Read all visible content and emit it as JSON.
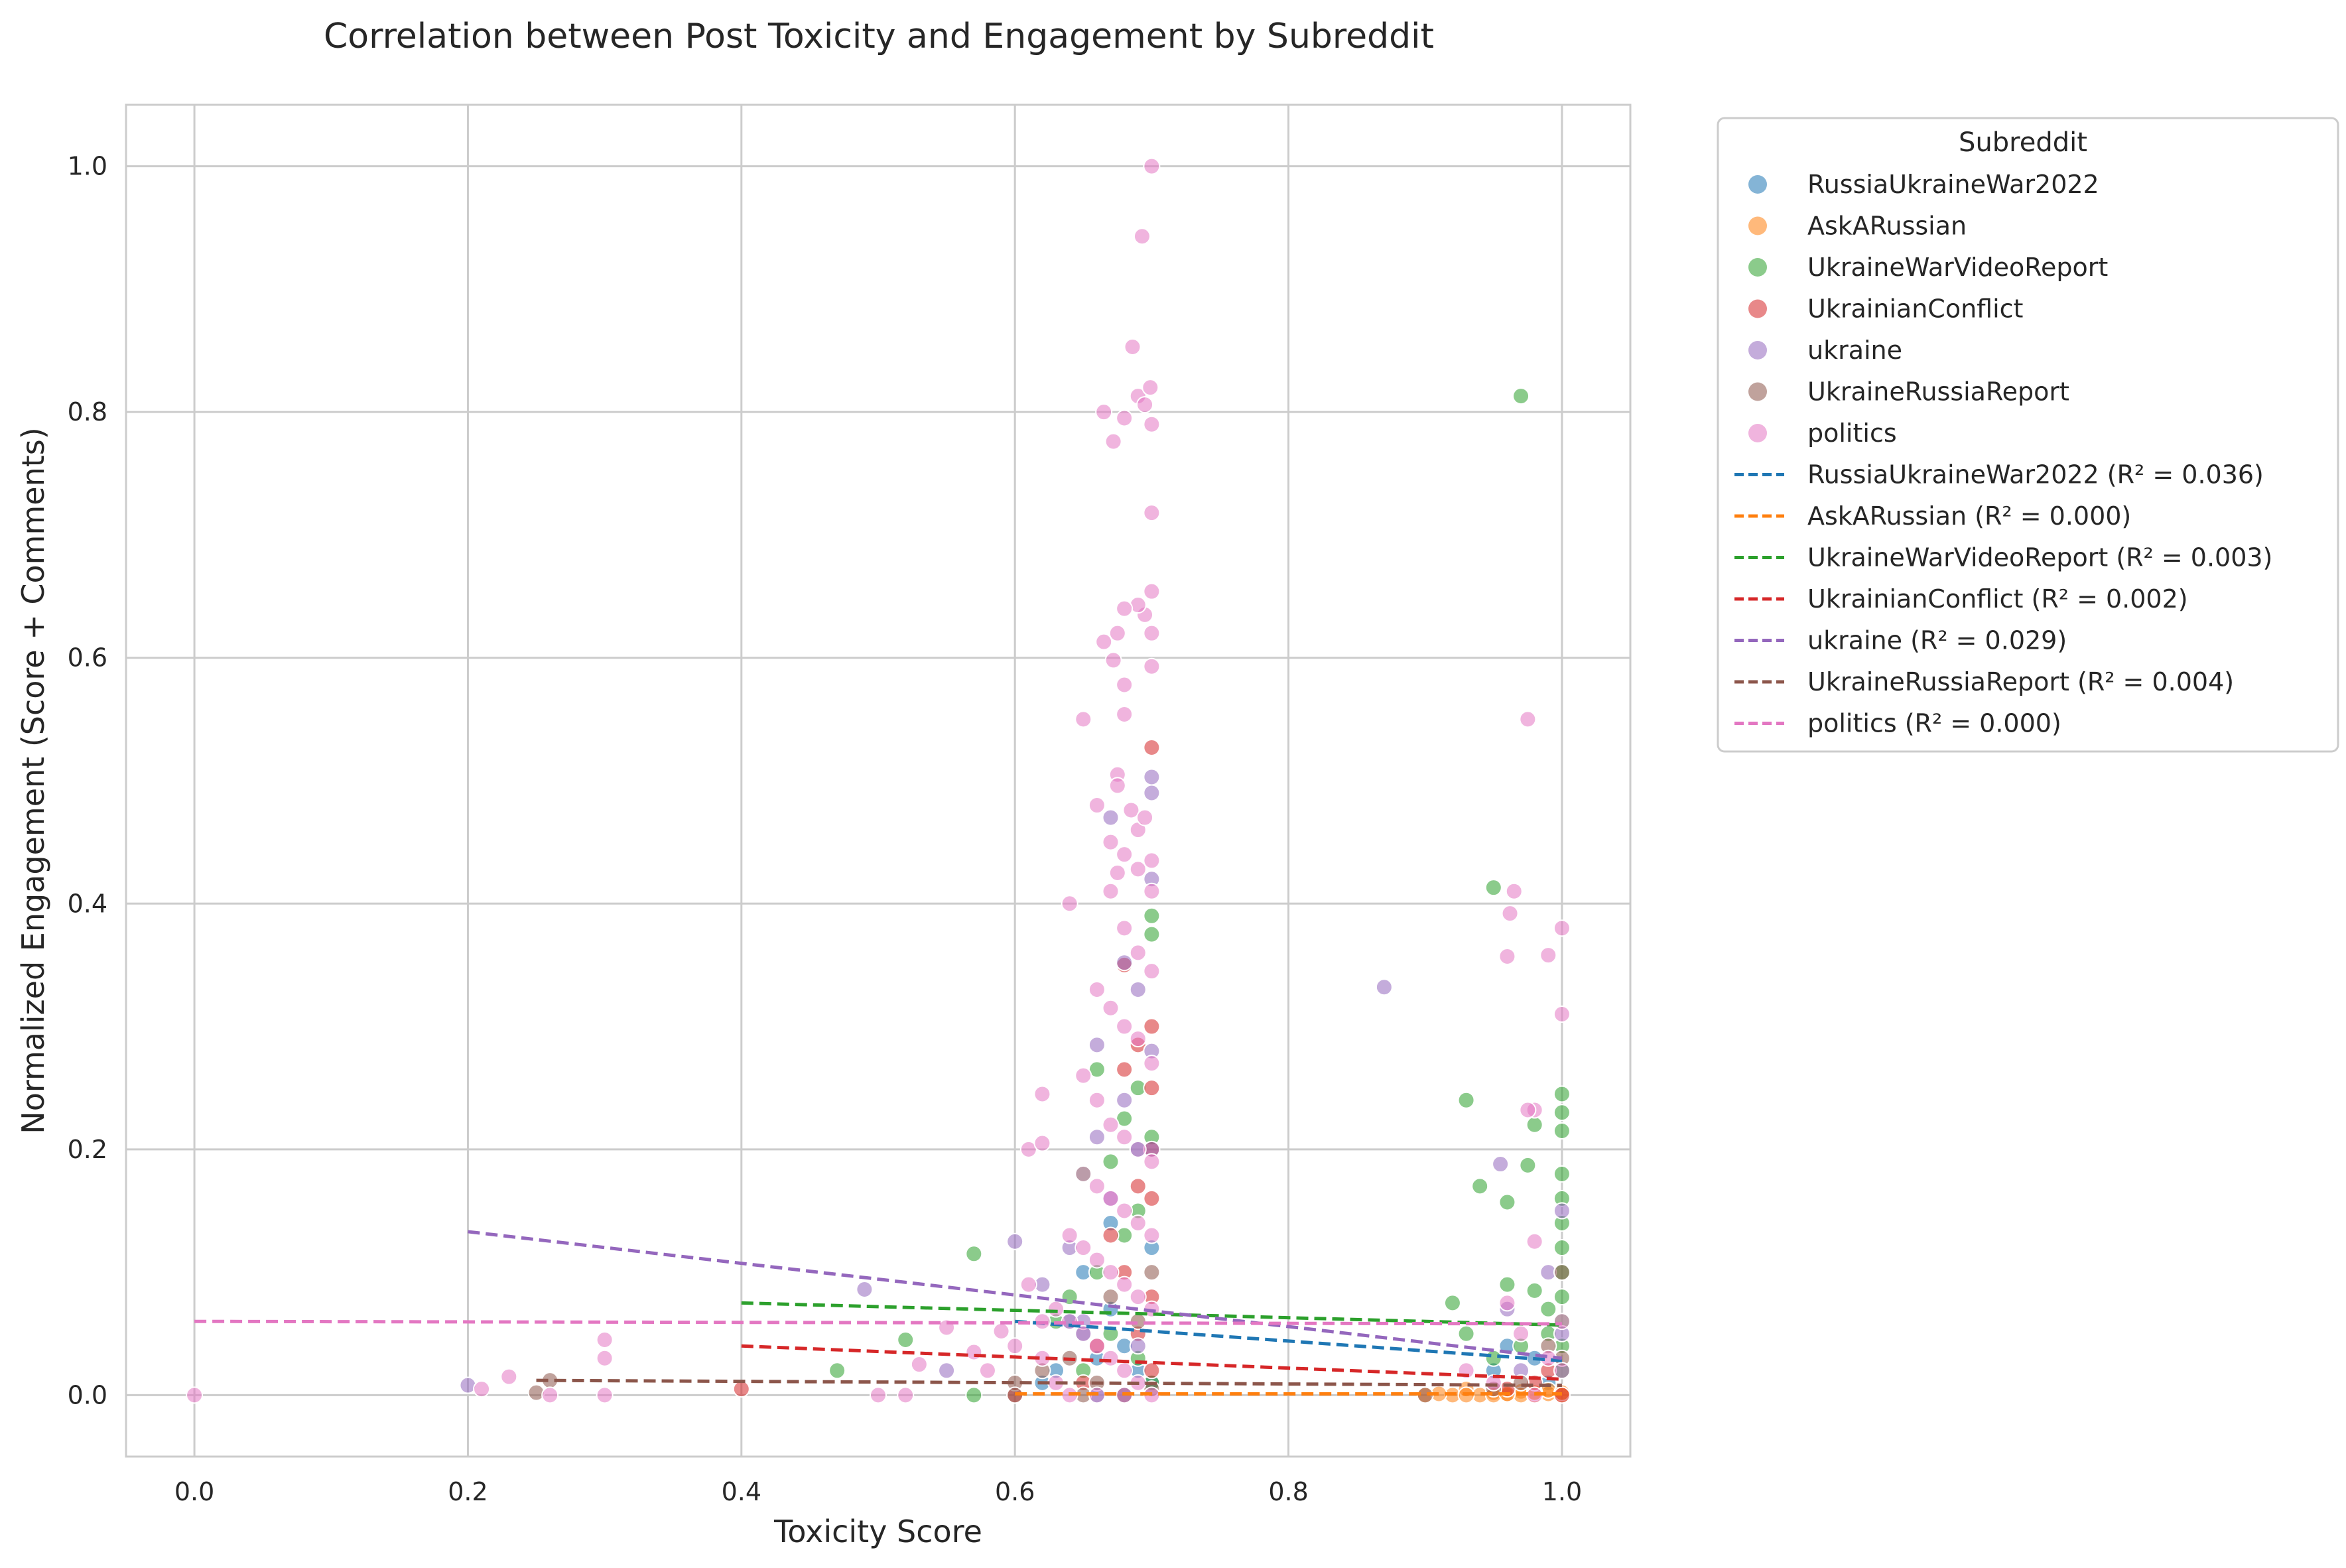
{
  "chart_data": {
    "type": "scatter",
    "title": "Correlation between Post Toxicity and Engagement by Subreddit",
    "xlabel": "Toxicity Score",
    "ylabel": "Normalized Engagement (Score + Comments)",
    "xlim": [
      -0.05,
      1.05
    ],
    "ylim": [
      -0.05,
      1.05
    ],
    "xticks": [
      "0.0",
      "0.2",
      "0.4",
      "0.6",
      "0.8",
      "1.0"
    ],
    "yticks": [
      "0.0",
      "0.2",
      "0.4",
      "0.6",
      "0.8",
      "1.0"
    ],
    "grid": true,
    "legend_title": "Subreddit",
    "legend_position": "outside-right",
    "series": [
      {
        "name": "RussiaUkraineWar2022",
        "color": "#1f77b4",
        "trend_label": "RussiaUkraineWar2022 (R² = 0.036)",
        "trend": [
          [
            0.6,
            0.06
          ],
          [
            1.0,
            0.028
          ]
        ],
        "points": [
          [
            0.62,
            0.01
          ],
          [
            0.63,
            0.02
          ],
          [
            0.64,
            0.06
          ],
          [
            0.65,
            0.05
          ],
          [
            0.66,
            0.03
          ],
          [
            0.67,
            0.07
          ],
          [
            0.68,
            0.04
          ],
          [
            0.69,
            0.02
          ],
          [
            0.7,
            0.01
          ],
          [
            0.65,
            0.1
          ],
          [
            0.67,
            0.14
          ],
          [
            0.69,
            0.2
          ],
          [
            0.7,
            0.12
          ],
          [
            0.95,
            0.02
          ],
          [
            0.98,
            0.03
          ],
          [
            1.0,
            0.02
          ],
          [
            0.96,
            0.04
          ],
          [
            0.99,
            0.01
          ],
          [
            0.66,
            0.0
          ],
          [
            0.68,
            0.0
          ]
        ]
      },
      {
        "name": "AskARussian",
        "color": "#ff7f0e",
        "trend_label": "AskARussian (R² = 0.000)",
        "trend": [
          [
            0.6,
            0.001
          ],
          [
            1.0,
            0.001
          ]
        ],
        "points": [
          [
            0.9,
            0.0
          ],
          [
            0.92,
            0.0
          ],
          [
            0.93,
            0.005
          ],
          [
            0.94,
            0.0
          ],
          [
            0.95,
            0.002
          ],
          [
            0.96,
            0.0
          ],
          [
            0.97,
            0.003
          ],
          [
            0.98,
            0.0
          ],
          [
            0.99,
            0.001
          ],
          [
            1.0,
            0.0
          ],
          [
            0.91,
            0.001
          ],
          [
            0.95,
            0.0
          ],
          [
            0.97,
            0.0
          ],
          [
            0.99,
            0.004
          ],
          [
            1.0,
            0.002
          ],
          [
            0.96,
            0.001
          ],
          [
            0.93,
            0.0
          ],
          [
            0.98,
            0.002
          ]
        ]
      },
      {
        "name": "UkraineWarVideoReport",
        "color": "#2ca02c",
        "trend_label": "UkraineWarVideoReport (R² = 0.003)",
        "trend": [
          [
            0.4,
            0.075
          ],
          [
            1.0,
            0.057
          ]
        ],
        "points": [
          [
            0.97,
            0.813
          ],
          [
            0.95,
            0.413
          ],
          [
            0.93,
            0.24
          ],
          [
            0.98,
            0.22
          ],
          [
            0.975,
            0.187
          ],
          [
            0.94,
            0.17
          ],
          [
            0.96,
            0.157
          ],
          [
            0.92,
            0.075
          ],
          [
            0.96,
            0.09
          ],
          [
            0.98,
            0.085
          ],
          [
            0.99,
            0.07
          ],
          [
            1.0,
            0.245
          ],
          [
            1.0,
            0.23
          ],
          [
            1.0,
            0.215
          ],
          [
            1.0,
            0.18
          ],
          [
            1.0,
            0.16
          ],
          [
            1.0,
            0.14
          ],
          [
            1.0,
            0.12
          ],
          [
            1.0,
            0.1
          ],
          [
            1.0,
            0.08
          ],
          [
            1.0,
            0.06
          ],
          [
            1.0,
            0.04
          ],
          [
            1.0,
            0.02
          ],
          [
            0.97,
            0.04
          ],
          [
            0.95,
            0.03
          ],
          [
            0.99,
            0.05
          ],
          [
            0.93,
            0.05
          ],
          [
            0.7,
            0.39
          ],
          [
            0.7,
            0.375
          ],
          [
            0.66,
            0.265
          ],
          [
            0.69,
            0.25
          ],
          [
            0.68,
            0.225
          ],
          [
            0.7,
            0.21
          ],
          [
            0.67,
            0.19
          ],
          [
            0.65,
            0.18
          ],
          [
            0.69,
            0.15
          ],
          [
            0.68,
            0.13
          ],
          [
            0.66,
            0.1
          ],
          [
            0.64,
            0.08
          ],
          [
            0.57,
            0.115
          ],
          [
            0.52,
            0.045
          ],
          [
            0.47,
            0.02
          ],
          [
            0.57,
            0.0
          ],
          [
            0.63,
            0.06
          ],
          [
            0.67,
            0.05
          ],
          [
            0.69,
            0.03
          ],
          [
            0.65,
            0.02
          ],
          [
            0.7,
            0.01
          ]
        ]
      },
      {
        "name": "UkrainianConflict",
        "color": "#d62728",
        "trend_label": "UkrainianConflict (R² = 0.002)",
        "trend": [
          [
            0.4,
            0.04
          ],
          [
            1.0,
            0.013
          ]
        ],
        "points": [
          [
            0.7,
            0.527
          ],
          [
            0.69,
            0.285
          ],
          [
            0.7,
            0.25
          ],
          [
            0.68,
            0.265
          ],
          [
            0.7,
            0.2
          ],
          [
            0.69,
            0.17
          ],
          [
            0.7,
            0.16
          ],
          [
            0.67,
            0.13
          ],
          [
            0.68,
            0.1
          ],
          [
            0.7,
            0.08
          ],
          [
            0.69,
            0.05
          ],
          [
            0.66,
            0.04
          ],
          [
            0.7,
            0.02
          ],
          [
            0.65,
            0.01
          ],
          [
            0.4,
            0.005
          ],
          [
            0.6,
            0.0
          ],
          [
            0.98,
            0.01
          ],
          [
            1.0,
            0.0
          ],
          [
            0.96,
            0.005
          ],
          [
            0.99,
            0.02
          ],
          [
            0.68,
            0.35
          ],
          [
            0.7,
            0.3
          ]
        ]
      },
      {
        "name": "ukraine",
        "color": "#9467bd",
        "trend_label": "ukraine (R² = 0.029)",
        "trend": [
          [
            0.2,
            0.133
          ],
          [
            1.0,
            0.03
          ]
        ],
        "points": [
          [
            0.87,
            0.332
          ],
          [
            0.955,
            0.188
          ],
          [
            0.7,
            0.503
          ],
          [
            0.7,
            0.49
          ],
          [
            0.67,
            0.47
          ],
          [
            0.7,
            0.42
          ],
          [
            0.68,
            0.352
          ],
          [
            0.69,
            0.33
          ],
          [
            0.66,
            0.285
          ],
          [
            0.68,
            0.24
          ],
          [
            0.7,
            0.28
          ],
          [
            0.66,
            0.21
          ],
          [
            0.67,
            0.16
          ],
          [
            0.64,
            0.12
          ],
          [
            0.6,
            0.125
          ],
          [
            0.49,
            0.086
          ],
          [
            0.55,
            0.02
          ],
          [
            0.2,
            0.008
          ],
          [
            0.62,
            0.09
          ],
          [
            0.65,
            0.06
          ],
          [
            0.69,
            0.04
          ],
          [
            0.96,
            0.07
          ],
          [
            1.0,
            0.15
          ],
          [
            0.99,
            0.1
          ],
          [
            1.0,
            0.05
          ],
          [
            0.97,
            0.02
          ],
          [
            0.7,
            0.2
          ]
        ]
      },
      {
        "name": "UkraineRussiaReport",
        "color": "#8c564b",
        "trend_label": "UkraineRussiaReport (R² = 0.004)",
        "trend": [
          [
            0.25,
            0.012
          ],
          [
            1.0,
            0.008
          ]
        ],
        "points": [
          [
            0.25,
            0.002
          ],
          [
            0.26,
            0.012
          ],
          [
            0.6,
            0.01
          ],
          [
            0.62,
            0.02
          ],
          [
            0.64,
            0.03
          ],
          [
            0.66,
            0.01
          ],
          [
            0.68,
            0.0
          ],
          [
            0.7,
            0.005
          ],
          [
            0.69,
            0.06
          ],
          [
            0.67,
            0.08
          ],
          [
            0.7,
            0.1
          ],
          [
            0.9,
            0.0
          ],
          [
            0.95,
            0.005
          ],
          [
            0.97,
            0.01
          ],
          [
            1.0,
            0.03
          ],
          [
            0.99,
            0.04
          ],
          [
            1.0,
            0.1
          ],
          [
            0.6,
            0.0
          ],
          [
            0.65,
            0.0
          ]
        ]
      },
      {
        "name": "politics",
        "color": "#e377c2",
        "trend_label": "politics (R² = 0.000)",
        "trend": [
          [
            0.0,
            0.06
          ],
          [
            1.0,
            0.058
          ]
        ],
        "points": [
          [
            0.0,
            0.0
          ],
          [
            0.3,
            0.045
          ],
          [
            0.3,
            0.03
          ],
          [
            0.3,
            0.0
          ],
          [
            0.23,
            0.015
          ],
          [
            0.21,
            0.005
          ],
          [
            0.26,
            0.0
          ],
          [
            0.5,
            0.0
          ],
          [
            0.52,
            0.0
          ],
          [
            0.53,
            0.025
          ],
          [
            0.55,
            0.055
          ],
          [
            0.57,
            0.035
          ],
          [
            0.58,
            0.02
          ],
          [
            0.59,
            0.052
          ],
          [
            0.6,
            0.04
          ],
          [
            0.61,
            0.2
          ],
          [
            0.62,
            0.205
          ],
          [
            0.62,
            0.245
          ],
          [
            0.64,
            0.4
          ],
          [
            0.65,
            0.55
          ],
          [
            0.66,
            0.48
          ],
          [
            0.67,
            0.45
          ],
          [
            0.665,
            0.8
          ],
          [
            0.672,
            0.776
          ],
          [
            0.68,
            0.795
          ],
          [
            0.686,
            0.853
          ],
          [
            0.69,
            0.813
          ],
          [
            0.693,
            0.943
          ],
          [
            0.695,
            0.806
          ],
          [
            0.699,
            0.82
          ],
          [
            0.7,
            0.79
          ],
          [
            0.7,
            1.0
          ],
          [
            0.7,
            0.718
          ],
          [
            0.7,
            0.654
          ],
          [
            0.7,
            0.62
          ],
          [
            0.7,
            0.593
          ],
          [
            0.695,
            0.635
          ],
          [
            0.69,
            0.643
          ],
          [
            0.68,
            0.64
          ],
          [
            0.675,
            0.62
          ],
          [
            0.665,
            0.613
          ],
          [
            0.672,
            0.598
          ],
          [
            0.68,
            0.578
          ],
          [
            0.68,
            0.554
          ],
          [
            0.675,
            0.505
          ],
          [
            0.675,
            0.496
          ],
          [
            0.685,
            0.476
          ],
          [
            0.69,
            0.46
          ],
          [
            0.695,
            0.47
          ],
          [
            0.7,
            0.435
          ],
          [
            0.7,
            0.41
          ],
          [
            0.69,
            0.428
          ],
          [
            0.68,
            0.44
          ],
          [
            0.675,
            0.425
          ],
          [
            0.67,
            0.41
          ],
          [
            0.68,
            0.38
          ],
          [
            0.69,
            0.36
          ],
          [
            0.7,
            0.345
          ],
          [
            0.66,
            0.33
          ],
          [
            0.67,
            0.315
          ],
          [
            0.68,
            0.3
          ],
          [
            0.69,
            0.29
          ],
          [
            0.7,
            0.27
          ],
          [
            0.65,
            0.26
          ],
          [
            0.66,
            0.24
          ],
          [
            0.67,
            0.22
          ],
          [
            0.68,
            0.21
          ],
          [
            0.69,
            0.2
          ],
          [
            0.7,
            0.19
          ],
          [
            0.65,
            0.18
          ],
          [
            0.66,
            0.17
          ],
          [
            0.67,
            0.16
          ],
          [
            0.68,
            0.15
          ],
          [
            0.69,
            0.14
          ],
          [
            0.7,
            0.13
          ],
          [
            0.64,
            0.13
          ],
          [
            0.65,
            0.12
          ],
          [
            0.66,
            0.11
          ],
          [
            0.67,
            0.1
          ],
          [
            0.68,
            0.09
          ],
          [
            0.69,
            0.08
          ],
          [
            0.7,
            0.07
          ],
          [
            0.63,
            0.07
          ],
          [
            0.64,
            0.06
          ],
          [
            0.65,
            0.05
          ],
          [
            0.66,
            0.04
          ],
          [
            0.67,
            0.03
          ],
          [
            0.68,
            0.02
          ],
          [
            0.69,
            0.01
          ],
          [
            0.7,
            0.0
          ],
          [
            0.62,
            0.03
          ],
          [
            0.63,
            0.01
          ],
          [
            0.64,
            0.0
          ],
          [
            0.66,
            0.0
          ],
          [
            0.68,
            0.0
          ],
          [
            0.61,
            0.09
          ],
          [
            0.62,
            0.06
          ],
          [
            0.975,
            0.55
          ],
          [
            0.965,
            0.41
          ],
          [
            0.962,
            0.392
          ],
          [
            0.96,
            0.357
          ],
          [
            0.99,
            0.358
          ],
          [
            1.0,
            0.38
          ],
          [
            1.0,
            0.31
          ],
          [
            0.98,
            0.232
          ],
          [
            0.975,
            0.232
          ],
          [
            0.98,
            0.125
          ],
          [
            0.96,
            0.075
          ],
          [
            0.97,
            0.05
          ],
          [
            0.99,
            0.03
          ],
          [
            1.0,
            0.02
          ],
          [
            0.95,
            0.01
          ],
          [
            0.93,
            0.02
          ],
          [
            0.98,
            0.0
          ],
          [
            1.0,
            0.06
          ]
        ]
      }
    ]
  }
}
